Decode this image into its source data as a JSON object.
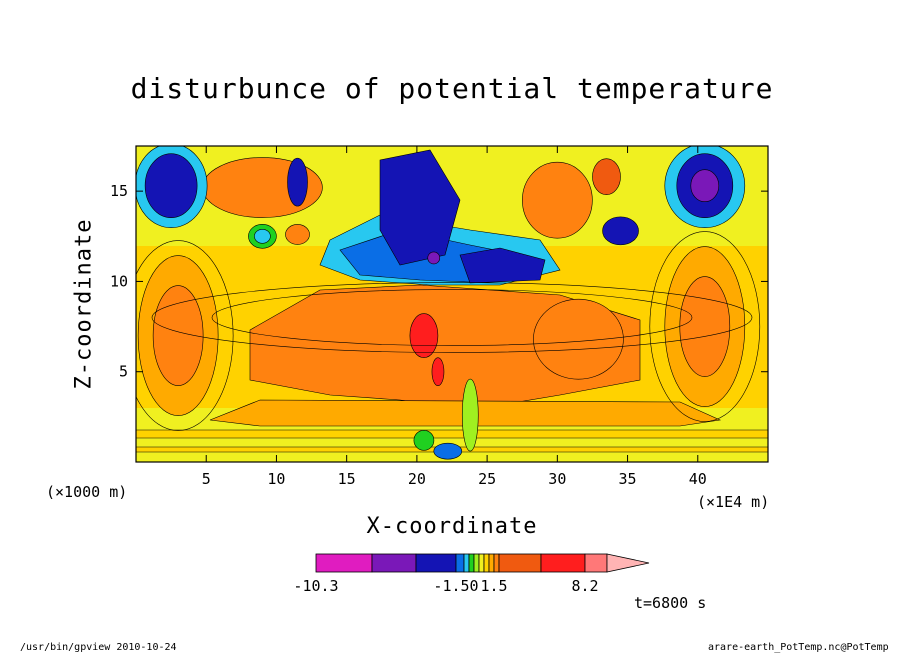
{
  "chart_data": {
    "type": "heatmap",
    "title": "disturbunce of potential temperature",
    "xlabel": "X-coordinate",
    "ylabel": "Z-coordinate",
    "x_unit_left": "(×1000 m)",
    "x_unit_right": "(×1E4 m)",
    "x_ticks": [
      5,
      10,
      15,
      20,
      25,
      30,
      35,
      40
    ],
    "y_ticks": [
      5,
      10,
      15
    ],
    "xlim": [
      0,
      45
    ],
    "ylim": [
      0,
      17.5
    ],
    "colorbar": {
      "labels": [
        "-10.3",
        "-1.50",
        "1.5",
        "8.2"
      ],
      "colors": [
        "#e01cc0",
        "#7a18b8",
        "#1414b4",
        "#0a6ee6",
        "#28c8f0",
        "#20d020",
        "#a0f020",
        "#f0f020",
        "#ffd200",
        "#ffaa00",
        "#ff8210",
        "#f05a10",
        "#ff1e1e",
        "#ff7878",
        "#ffb4b4"
      ]
    },
    "time_label": "t=6800 s"
  },
  "footer": {
    "left": "/usr/bin/gpview   2010-10-24",
    "right": "arare-earth_PotTemp.nc@PotTemp"
  }
}
